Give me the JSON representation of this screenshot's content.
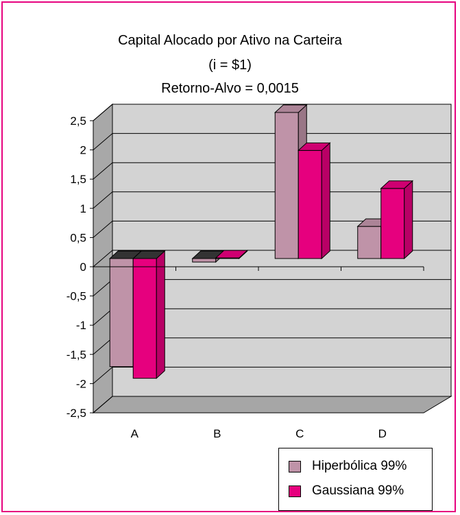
{
  "chart_data": {
    "type": "bar",
    "title_lines": [
      "Capital Alocado por Ativo na Carteira",
      "(i = $1)",
      "Retorno-Alvo = 0,0015"
    ],
    "categories": [
      "A",
      "B",
      "C",
      "D"
    ],
    "series": [
      {
        "name": "Hiperbólica 99%",
        "values": [
          -1.85,
          -0.06,
          2.5,
          0.55
        ],
        "color": "#bf93a8"
      },
      {
        "name": "Gaussiana 99%",
        "values": [
          -2.05,
          0.01,
          1.85,
          1.2
        ],
        "color": "#e6007e"
      }
    ],
    "ylim": [
      -2.5,
      2.5
    ],
    "y_ticks": [
      "2,5",
      "2",
      "1,5",
      "1",
      "0,5",
      "0",
      "-0,5",
      "-1",
      "-1,5",
      "-2",
      "-2,5"
    ],
    "grid": true,
    "legend_position": "bottom-right",
    "frame_color": "#e6007e",
    "wall_color": "#d3d3d3",
    "floor_color": "#a6a6a6"
  }
}
